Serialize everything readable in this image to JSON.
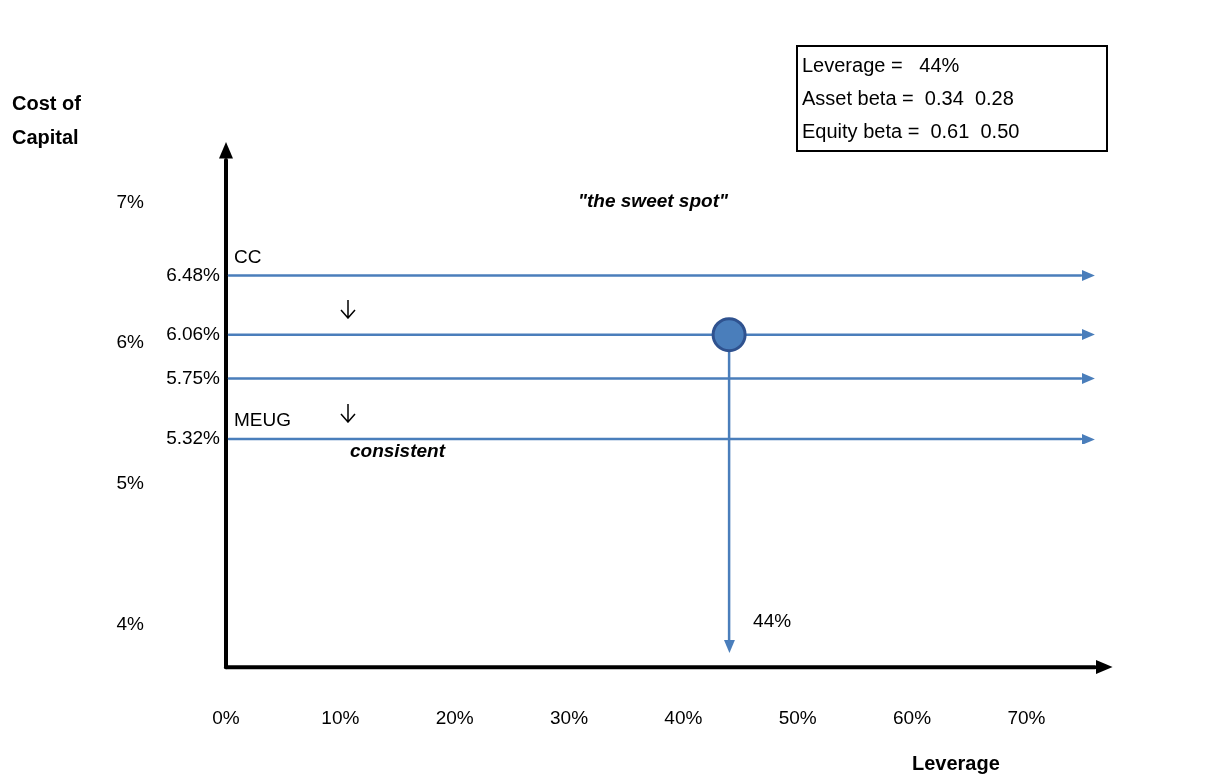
{
  "chart_data": {
    "type": "scatter",
    "xlabel": "Leverage",
    "ylabel": "Cost of Capital",
    "xlim": [
      0,
      76
    ],
    "ylim": [
      3.7,
      7.3
    ],
    "xticks": [
      {
        "value": 0,
        "label": "0%"
      },
      {
        "value": 10,
        "label": "10%"
      },
      {
        "value": 20,
        "label": "20%"
      },
      {
        "value": 30,
        "label": "30%"
      },
      {
        "value": 40,
        "label": "40%"
      },
      {
        "value": 50,
        "label": "50%"
      },
      {
        "value": 60,
        "label": "60%"
      },
      {
        "value": 70,
        "label": "70%"
      }
    ],
    "yticks": [
      {
        "value": 4,
        "label": "4%"
      },
      {
        "value": 5,
        "label": "5%"
      },
      {
        "value": 6,
        "label": "6%"
      },
      {
        "value": 7,
        "label": "7%"
      }
    ],
    "series": [
      {
        "x": [
          44
        ],
        "values": [
          6.06
        ],
        "color": "#4a7ebb"
      }
    ],
    "marker": "circle",
    "ref_lines": [
      {
        "axis": "y",
        "value": 6.48,
        "label": "6.48%",
        "color": "#4a7ebb"
      },
      {
        "axis": "y",
        "value": 6.06,
        "label": "6.06%",
        "color": "#4a7ebb"
      },
      {
        "axis": "y",
        "value": 5.75,
        "label": "5.75%",
        "color": "#4a7ebb"
      },
      {
        "axis": "y",
        "value": 5.32,
        "label": "5.32%",
        "color": "#4a7ebb"
      },
      {
        "axis": "x",
        "value": 44,
        "label": "44%",
        "color": "#4a7ebb"
      }
    ],
    "annotations": [
      "\"the sweet spot\"",
      "consistent",
      "Leverage =   44%",
      "Asset beta =  0.34  0.28",
      "Equity beta =  0.61  0.50",
      {
        "text": "CC",
        "x": 0,
        "y": 6.48
      },
      {
        "text": "MEUG",
        "x": 0,
        "y": 5.32
      }
    ]
  }
}
